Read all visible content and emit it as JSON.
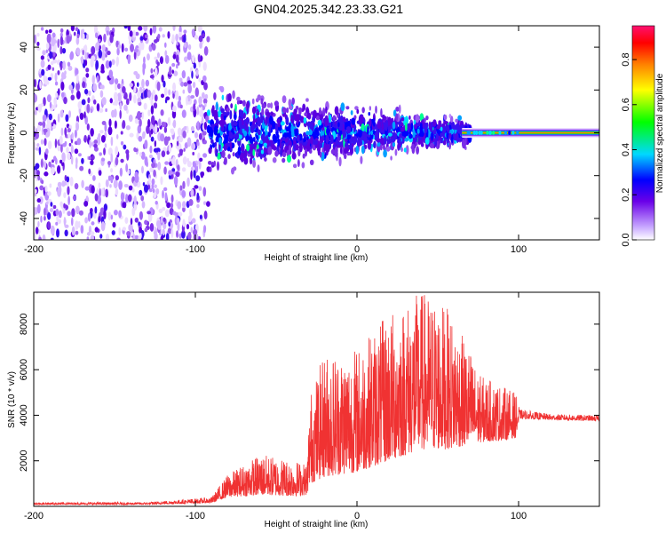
{
  "title": "GN04.2025.342.23.33.G21",
  "chart_data": [
    {
      "type": "heatmap",
      "title": "GN04.2025.342.23.33.G21",
      "xlabel": "Height of straight line (km)",
      "ylabel": "Frequency (Hz)",
      "xlim": [
        -200,
        150
      ],
      "ylim": [
        -50,
        50
      ],
      "xticks": [
        -200,
        -100,
        0,
        100
      ],
      "yticks": [
        -40,
        -20,
        0,
        20,
        40
      ],
      "x_tick_labels": [
        "-200",
        "-100",
        "0",
        "100"
      ],
      "y_tick_labels": [
        "-40",
        "-20",
        "0",
        "20",
        "40"
      ],
      "colorbar": {
        "label": "Normalized spectral amplitude",
        "range": [
          0,
          0.95
        ],
        "ticks": [
          0,
          0.2,
          0.4,
          0.6,
          0.8
        ],
        "tick_labels": [
          "0.0",
          "0.2",
          "0.4",
          "0.6",
          "0.8"
        ],
        "colors": [
          "#ffffff",
          "#9b5cf0",
          "#5a00e0",
          "#0000ff",
          "#00d8ff",
          "#00ff00",
          "#ffff00",
          "#ff8000",
          "#ff0000",
          "#ff0070"
        ]
      },
      "regions": [
        {
          "name": "noise",
          "x_range": [
            -200,
            -92
          ],
          "freq_range": [
            -50,
            50
          ],
          "amplitude_range": [
            0,
            0.12
          ]
        },
        {
          "name": "scattered-signal",
          "x_range": [
            -92,
            70
          ],
          "freq_spread_at_start": 25,
          "freq_spread_at_end": 8,
          "amplitude_range": [
            0.05,
            0.25
          ]
        },
        {
          "name": "coherent-line",
          "x_range": [
            65,
            150
          ],
          "center_freq": 0,
          "amplitude_peak": 0.93
        }
      ]
    },
    {
      "type": "line",
      "xlabel": "Height of straight line (km)",
      "ylabel": "SNR (10 * v/v)",
      "xlim": [
        -200,
        150
      ],
      "ylim": [
        0,
        9400
      ],
      "xticks": [
        -200,
        -100,
        0,
        100
      ],
      "yticks": [
        2000,
        4000,
        6000,
        8000
      ],
      "x_tick_labels": [
        "-200",
        "-100",
        "0",
        "100"
      ],
      "y_tick_labels": [
        "2000",
        "4000",
        "6000",
        "8000"
      ],
      "color": "#f03232",
      "envelope": [
        {
          "x": -200,
          "base": 80,
          "amp": 100
        },
        {
          "x": -130,
          "base": 80,
          "amp": 100
        },
        {
          "x": -90,
          "base": 150,
          "amp": 250
        },
        {
          "x": -80,
          "base": 400,
          "amp": 1000
        },
        {
          "x": -60,
          "base": 500,
          "amp": 1800
        },
        {
          "x": -40,
          "base": 450,
          "amp": 1600
        },
        {
          "x": -31,
          "base": 500,
          "amp": 1400
        },
        {
          "x": -29,
          "base": 1000,
          "amp": 4000
        },
        {
          "x": -20,
          "base": 1300,
          "amp": 5500
        },
        {
          "x": 0,
          "base": 1500,
          "amp": 5500
        },
        {
          "x": 20,
          "base": 2000,
          "amp": 6500
        },
        {
          "x": 40,
          "base": 2500,
          "amp": 7000
        },
        {
          "x": 55,
          "base": 2500,
          "amp": 6300
        },
        {
          "x": 70,
          "base": 2700,
          "amp": 4200
        },
        {
          "x": 75,
          "base": 2800,
          "amp": 3000
        },
        {
          "x": 90,
          "base": 2900,
          "amp": 2400
        },
        {
          "x": 98,
          "base": 3000,
          "amp": 2000
        },
        {
          "x": 101,
          "base": 3850,
          "amp": 400
        },
        {
          "x": 120,
          "base": 3800,
          "amp": 250
        },
        {
          "x": 150,
          "base": 3750,
          "amp": 250
        }
      ]
    }
  ]
}
